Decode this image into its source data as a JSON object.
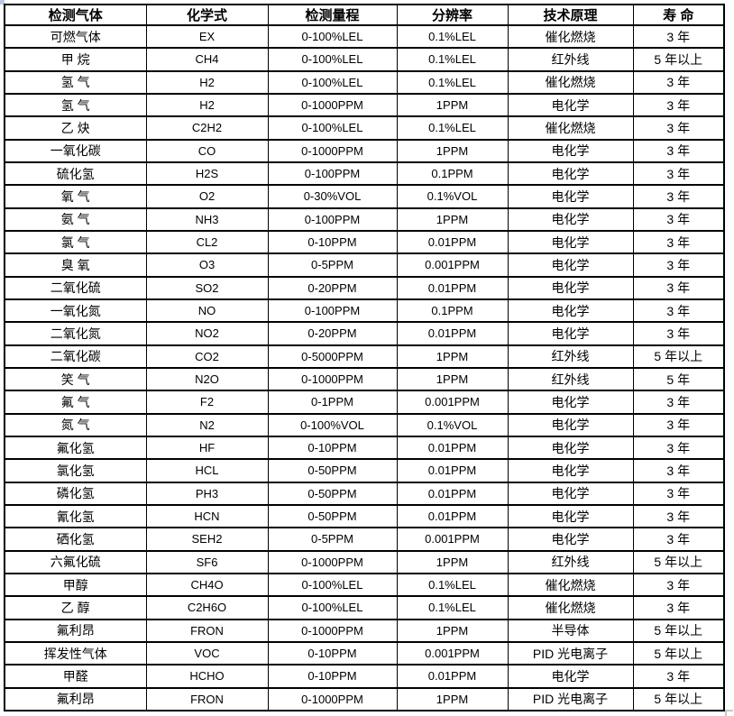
{
  "table": {
    "columns": [
      "检测气体",
      "化学式",
      "检测量程",
      "分辨率",
      "技术原理",
      "寿 命"
    ],
    "rows": [
      [
        "可燃气体",
        "EX",
        "0-100%LEL",
        "0.1%LEL",
        "催化燃烧",
        "3 年"
      ],
      [
        "甲 烷",
        "CH4",
        "0-100%LEL",
        "0.1%LEL",
        "红外线",
        "5 年以上"
      ],
      [
        "氢 气",
        "H2",
        "0-100%LEL",
        "0.1%LEL",
        "催化燃烧",
        "3 年"
      ],
      [
        "氢 气",
        "H2",
        "0-1000PPM",
        "1PPM",
        "电化学",
        "3 年"
      ],
      [
        "乙 炔",
        "C2H2",
        "0-100%LEL",
        "0.1%LEL",
        "催化燃烧",
        "3 年"
      ],
      [
        "一氧化碳",
        "CO",
        "0-1000PPM",
        "1PPM",
        "电化学",
        "3 年"
      ],
      [
        "硫化氢",
        "H2S",
        "0-100PPM",
        "0.1PPM",
        "电化学",
        "3 年"
      ],
      [
        "氧 气",
        "O2",
        "0-30%VOL",
        "0.1%VOL",
        "电化学",
        "3 年"
      ],
      [
        "氨 气",
        "NH3",
        "0-100PPM",
        "1PPM",
        "电化学",
        "3 年"
      ],
      [
        "氯 气",
        "CL2",
        "0-10PPM",
        "0.01PPM",
        "电化学",
        "3 年"
      ],
      [
        "臭 氧",
        "O3",
        "0-5PPM",
        "0.001PPM",
        "电化学",
        "3 年"
      ],
      [
        "二氧化硫",
        "SO2",
        "0-20PPM",
        "0.01PPM",
        "电化学",
        "3 年"
      ],
      [
        "一氧化氮",
        "NO",
        "0-100PPM",
        "0.1PPM",
        "电化学",
        "3 年"
      ],
      [
        "二氧化氮",
        "NO2",
        "0-20PPM",
        "0.01PPM",
        "电化学",
        "3 年"
      ],
      [
        "二氧化碳",
        "CO2",
        "0-5000PPM",
        "1PPM",
        "红外线",
        "5 年以上"
      ],
      [
        "笑 气",
        "N2O",
        "0-1000PPM",
        "1PPM",
        "红外线",
        "5 年"
      ],
      [
        "氟 气",
        "F2",
        "0-1PPM",
        "0.001PPM",
        "电化学",
        "3 年"
      ],
      [
        "氮 气",
        "N2",
        "0-100%VOL",
        "0.1%VOL",
        "电化学",
        "3 年"
      ],
      [
        "氟化氢",
        "HF",
        "0-10PPM",
        "0.01PPM",
        "电化学",
        "3 年"
      ],
      [
        "氯化氢",
        "HCL",
        "0-50PPM",
        "0.01PPM",
        "电化学",
        "3 年"
      ],
      [
        "磷化氢",
        "PH3",
        "0-50PPM",
        "0.01PPM",
        "电化学",
        "3 年"
      ],
      [
        "氰化氢",
        "HCN",
        "0-50PPM",
        "0.01PPM",
        "电化学",
        "3 年"
      ],
      [
        "硒化氢",
        "SEH2",
        "0-5PPM",
        "0.001PPM",
        "电化学",
        "3 年"
      ],
      [
        "六氟化硫",
        "SF6",
        "0-1000PPM",
        "1PPM",
        "红外线",
        "5 年以上"
      ],
      [
        "甲醇",
        "CH4O",
        "0-100%LEL",
        "0.1%LEL",
        "催化燃烧",
        "3 年"
      ],
      [
        "乙 醇",
        "C2H6O",
        "0-100%LEL",
        "0.1%LEL",
        "催化燃烧",
        "3 年"
      ],
      [
        "氟利昂",
        "FRON",
        "0-1000PPM",
        "1PPM",
        "半导体",
        "5 年以上"
      ],
      [
        "挥发性气体",
        "VOC",
        "0-10PPM",
        "0.001PPM",
        "PID 光电离子",
        "5 年以上"
      ],
      [
        "甲醛",
        "HCHO",
        "0-10PPM",
        "0.01PPM",
        "电化学",
        "3 年"
      ],
      [
        "氟利昂",
        "FRON",
        "0-1000PPM",
        "1PPM",
        "PID 光电离子",
        "5 年以上"
      ]
    ]
  },
  "colors": {
    "text": "#000000",
    "border": "#000000",
    "background": "#ffffff",
    "artifact_blue": "#b9cade",
    "artifact_gray": "#c6c6c6"
  }
}
